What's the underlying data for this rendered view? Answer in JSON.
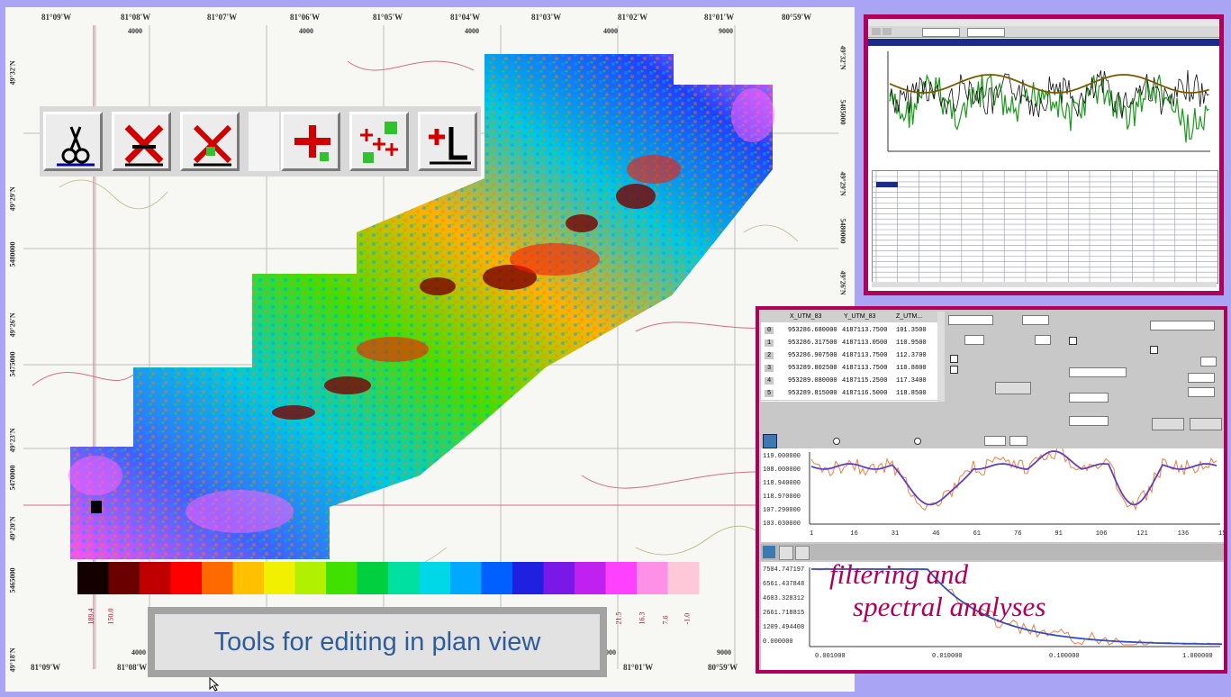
{
  "map": {
    "top_lon_labels": [
      "81°09'W",
      "81°08'W",
      "81°07'W",
      "81°06'W",
      "81°05'W",
      "81°04'W",
      "81°03'W",
      "81°02'W",
      "81°01'W",
      "80°59'W",
      "80°58'W"
    ],
    "top_utm_labels": [
      "4000",
      "4000",
      "4000",
      "4000",
      "9000"
    ],
    "bottom_lon_labels": [
      "81°09'W",
      "81°08'W",
      "81°01'W",
      "80°59'W"
    ],
    "bottom_utm_labels": [
      "4000",
      "4000",
      "9000"
    ],
    "left_lat_labels": [
      "49°32'N",
      "49°29'N",
      "5480000",
      "49°26'N",
      "5475000",
      "49°23'N",
      "5470000",
      "49°20'N",
      "5465000",
      "49°18'N"
    ],
    "right_lat_labels": [
      "49°32'N",
      "5485000",
      "49°29'N",
      "5480000",
      "49°26'N"
    ]
  },
  "colorbar": {
    "labels": [
      "189.4",
      "150.0",
      "21.5",
      "16.3",
      "7.6",
      "-1.0"
    ],
    "colors": [
      "#150000",
      "#6b0000",
      "#c00000",
      "#ff0000",
      "#ff6a00",
      "#ffc000",
      "#f0f000",
      "#b0f000",
      "#40e000",
      "#00d040",
      "#00e0a0",
      "#00d8e8",
      "#00a8ff",
      "#0060ff",
      "#2020e0",
      "#7a18e8",
      "#c020f0",
      "#ff40ff",
      "#ff90e8",
      "#ffc8d8"
    ]
  },
  "toolbar": {
    "buttons": [
      {
        "name": "cut-tool",
        "icon": "scissors-icon"
      },
      {
        "name": "delete-line-tool",
        "icon": "delete-line-icon"
      },
      {
        "name": "delete-points-tool",
        "icon": "delete-points-icon"
      },
      {
        "name": "add-point-tool",
        "icon": "add-point-icon"
      },
      {
        "name": "add-multiple-points-tool",
        "icon": "add-points-icon"
      },
      {
        "name": "add-line-tool",
        "icon": "add-line-icon"
      }
    ]
  },
  "caption": "Tools for editing in plan view",
  "spectral": {
    "table": {
      "headers": [
        "X_UTM_83",
        "Y_UTM_83",
        "Z_UTM..."
      ],
      "rows": [
        [
          "0",
          "953286.680000",
          "4187113.7500",
          "101.3500"
        ],
        [
          "1",
          "953286.317500",
          "4187113.0500",
          "110.9500"
        ],
        [
          "2",
          "953286.907500",
          "4187113.7500",
          "112.3700"
        ],
        [
          "3",
          "953289.802500",
          "4187113.7500",
          "110.8800"
        ],
        [
          "4",
          "953289.080000",
          "4187115.2500",
          "117.3400"
        ],
        [
          "5",
          "953289.815000",
          "4187116.5000",
          "118.8500"
        ]
      ]
    },
    "profile_y_labels": [
      "119.000000",
      "108.000000",
      "118.940000",
      "118.970000",
      "107.290000",
      "103.030000"
    ],
    "profile_x_labels": [
      "1",
      "16",
      "31",
      "46",
      "61",
      "76",
      "91",
      "106",
      "121",
      "136",
      "151"
    ],
    "spectrum_y_labels": [
      "7504.747197",
      "6561.437848",
      "4603.328312",
      "2661.718815",
      "1209.494408",
      "0.000000"
    ],
    "spectrum_x_labels": [
      "0.001000",
      "0.010000",
      "0.100000",
      "1.000000"
    ],
    "caption_line1": "filtering and",
    "caption_line2": "spectral analyses"
  },
  "colors": {
    "background": "#a9a4f3",
    "window_border": "#b0005a",
    "caption_text": "#2f5d9a",
    "filter_caption": "#b0005a"
  }
}
